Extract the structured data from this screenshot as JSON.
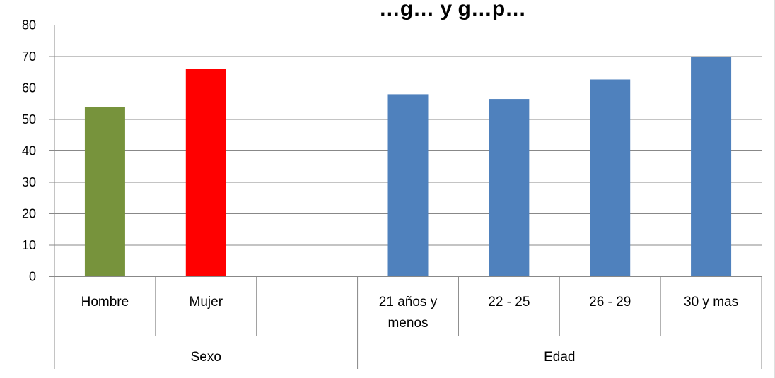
{
  "chart_data": {
    "type": "bar",
    "title": "…g… y g…p…",
    "categories": [
      "Hombre",
      "Mujer",
      "",
      "21 años y menos",
      "22 - 25",
      "26 - 29",
      "30 y mas"
    ],
    "category_lines": [
      [
        "Hombre"
      ],
      [
        "Mujer"
      ],
      [],
      [
        "21 años y",
        "menos"
      ],
      [
        "22 - 25"
      ],
      [
        "26 - 29"
      ],
      [
        "30 y mas"
      ]
    ],
    "groups": [
      {
        "label": "Sexo",
        "span": [
          0,
          2
        ]
      },
      {
        "label": "Edad",
        "span": [
          3,
          6
        ]
      }
    ],
    "values": [
      54,
      66,
      null,
      58,
      56.5,
      62.7,
      70
    ],
    "bar_colors": [
      "#77933C",
      "#FF0000",
      null,
      "#4F81BD",
      "#4F81BD",
      "#4F81BD",
      "#4F81BD"
    ],
    "ylim": [
      0,
      80
    ],
    "yticks": [
      0,
      10,
      20,
      30,
      40,
      50,
      60,
      70,
      80
    ],
    "ytick_labels": [
      "0",
      "10",
      "20",
      "30",
      "40",
      "50",
      "60",
      "70",
      "80"
    ],
    "grid": true,
    "xlabel": "",
    "ylabel": ""
  }
}
